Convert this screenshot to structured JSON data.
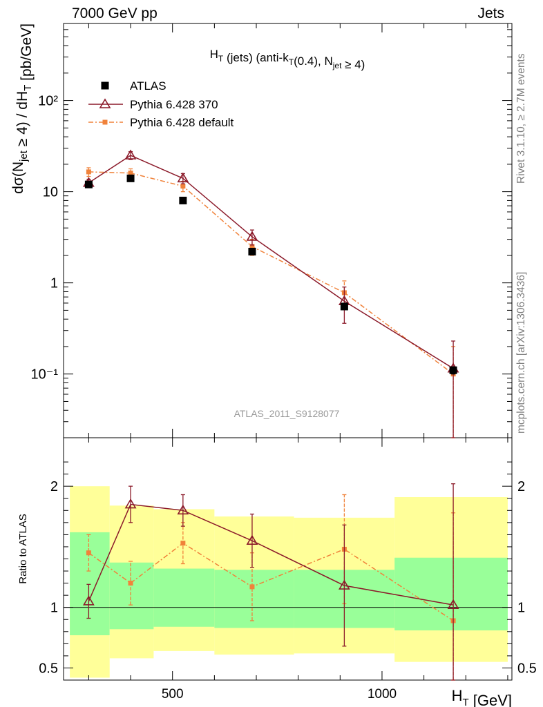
{
  "header": {
    "left_label": "7000 GeV pp",
    "right_label": "Jets"
  },
  "side_labels": {
    "rivet": "Rivet 3.1.10, ≥ 2.7M events",
    "site": "mcplots.cern.ch [arXiv:1306.3436]"
  },
  "watermark": "ATLAS_2011_S9128077",
  "colors": {
    "atlas": "#000000",
    "pythia370": "#8b1a2a",
    "pythia_default": "#f0823a",
    "band_inner": "#99ff99",
    "band_outer": "#ffff99"
  },
  "chart_data": [
    {
      "type": "scatter",
      "panel": "main",
      "title": "H_T (jets) (anti-k_T(0.4), N_jet ≥ 4)",
      "xlabel": "H_T [GeV]",
      "ylabel": "dσ(N_jet ≥ 4) / dH_T [pb/GeV]",
      "yscale": "log",
      "xlim": [
        240,
        1310
      ],
      "ylim": [
        0.02,
        700
      ],
      "y_ticks": [
        {
          "v": 0.1,
          "label": "10⁻¹"
        },
        {
          "v": 1,
          "label": "1"
        },
        {
          "v": 10,
          "label": "10"
        },
        {
          "v": 100,
          "label": "10²"
        }
      ],
      "legend_position": "top-left",
      "series": [
        {
          "name": "ATLAS",
          "style": "square",
          "x": [
            300,
            400,
            525,
            690,
            910,
            1170
          ],
          "y": [
            12,
            14,
            8.0,
            2.2,
            0.55,
            0.11
          ],
          "err_lo": [
            0.4,
            0.4,
            0.2,
            0.08,
            0.03,
            0.01
          ],
          "err_hi": [
            0.4,
            0.4,
            0.2,
            0.08,
            0.03,
            0.01
          ]
        },
        {
          "name": "Pythia 6.428 370",
          "style": "triangle",
          "x": [
            300,
            400,
            525,
            690,
            910,
            1170
          ],
          "y": [
            12.5,
            25,
            14,
            3.2,
            0.63,
            0.115
          ],
          "err_lo": [
            1.2,
            2.5,
            1.8,
            0.6,
            0.27,
            0.115
          ],
          "err_hi": [
            1.2,
            2.5,
            1.8,
            0.6,
            0.27,
            0.115
          ]
        },
        {
          "name": "Pythia 6.428 default",
          "style": "dashdot",
          "x": [
            300,
            400,
            525,
            690,
            910,
            1170
          ],
          "y": [
            16.5,
            16,
            11.5,
            2.5,
            0.78,
            0.1
          ],
          "err_lo": [
            1.8,
            1.8,
            1.5,
            0.5,
            0.27,
            0.1
          ],
          "err_hi": [
            1.8,
            1.8,
            1.5,
            0.5,
            0.27,
            0.1
          ]
        }
      ]
    },
    {
      "type": "scatter",
      "panel": "ratio",
      "xlabel": "H_T [GeV]",
      "ylabel": "Ratio to ATLAS",
      "xlim": [
        240,
        1310
      ],
      "ylim": [
        0.4,
        2.4
      ],
      "x_ticks": [
        500,
        1000
      ],
      "y_ticks": [
        {
          "v": 0.5,
          "label": "0.5"
        },
        {
          "v": 1,
          "label": "1"
        },
        {
          "v": 2,
          "label": "2"
        }
      ],
      "reference_line": 1,
      "bands": [
        {
          "x0": 255,
          "x1": 350,
          "inner": [
            0.77,
            1.62
          ],
          "outer": [
            0.42,
            2.0
          ]
        },
        {
          "x0": 350,
          "x1": 455,
          "inner": [
            0.82,
            1.37
          ],
          "outer": [
            0.58,
            1.84
          ]
        },
        {
          "x0": 455,
          "x1": 600,
          "inner": [
            0.84,
            1.32
          ],
          "outer": [
            0.64,
            1.81
          ]
        },
        {
          "x0": 600,
          "x1": 790,
          "inner": [
            0.83,
            1.31
          ],
          "outer": [
            0.61,
            1.75
          ]
        },
        {
          "x0": 790,
          "x1": 1030,
          "inner": [
            0.83,
            1.31
          ],
          "outer": [
            0.62,
            1.74
          ]
        },
        {
          "x0": 1030,
          "x1": 1300,
          "inner": [
            0.81,
            1.41
          ],
          "outer": [
            0.55,
            1.91
          ]
        }
      ],
      "series": [
        {
          "name": "Pythia 6.428 370",
          "style": "triangle",
          "x": [
            300,
            400,
            525,
            690,
            910,
            1170
          ],
          "y": [
            1.05,
            1.85,
            1.8,
            1.55,
            1.18,
            1.02
          ],
          "err_lo": [
            0.14,
            0.15,
            0.13,
            0.22,
            0.5,
            1.0
          ],
          "err_hi": [
            0.14,
            0.15,
            0.13,
            0.22,
            0.5,
            1.0
          ]
        },
        {
          "name": "Pythia 6.428 default",
          "style": "dashdot",
          "x": [
            300,
            400,
            525,
            690,
            910,
            1170
          ],
          "y": [
            1.45,
            1.2,
            1.53,
            1.17,
            1.48,
            0.89
          ],
          "err_lo": [
            0.15,
            0.18,
            0.17,
            0.28,
            0.45,
            0.89
          ],
          "err_hi": [
            0.15,
            0.18,
            0.17,
            0.28,
            0.45,
            0.89
          ]
        }
      ]
    }
  ]
}
